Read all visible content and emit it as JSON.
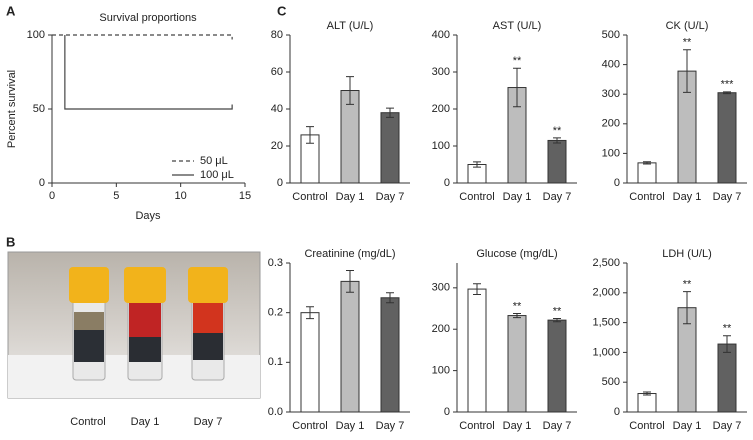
{
  "panel_labels": [
    "A",
    "B",
    "C"
  ],
  "photo": {
    "labels": [
      "Control",
      "Day 1",
      "Day 7"
    ]
  },
  "chart_data": [
    {
      "type": "line",
      "title": "Survival proportions",
      "x_label": "Days",
      "y_label": "Percent survival",
      "xlim": [
        0,
        15
      ],
      "xticks": [
        0,
        5,
        10,
        15
      ],
      "ylim": [
        0,
        100
      ],
      "yticks": [
        0,
        50,
        100
      ],
      "series": [
        {
          "name": "50 μL",
          "color": "#444444",
          "line_style": "dashed",
          "x": [
            0,
            14,
            14
          ],
          "values": [
            100,
            100,
            97
          ]
        },
        {
          "name": "100 μL",
          "color": "#444444",
          "line_style": "solid",
          "x": [
            1,
            1,
            1,
            14,
            14
          ],
          "values": [
            100,
            100,
            50,
            50,
            53
          ]
        }
      ],
      "legend": "lower right"
    },
    {
      "type": "bar",
      "title": "ALT (U/L)",
      "categories": [
        "Control",
        "Day 1",
        "Day 7"
      ],
      "values": [
        26,
        50,
        38
      ],
      "errors": [
        4.5,
        7.5,
        2.5
      ],
      "annotations": [
        null,
        null,
        null
      ],
      "colors": [
        "#ffffff",
        "#bdbdbd",
        "#616161"
      ],
      "ylim": [
        0,
        80
      ],
      "yticks": [
        0,
        20,
        40,
        60,
        80
      ]
    },
    {
      "type": "bar",
      "title": "AST (U/L)",
      "categories": [
        "Control",
        "Day 1",
        "Day 7"
      ],
      "values": [
        50,
        258,
        115
      ],
      "errors": [
        7,
        52,
        7
      ],
      "annotations": [
        null,
        "**",
        "**"
      ],
      "colors": [
        "#ffffff",
        "#bdbdbd",
        "#616161"
      ],
      "ylim": [
        0,
        400
      ],
      "yticks": [
        0,
        100,
        200,
        300,
        400
      ]
    },
    {
      "type": "bar",
      "title": "CK (U/L)",
      "categories": [
        "Control",
        "Day 1",
        "Day 7"
      ],
      "values": [
        68,
        378,
        305
      ],
      "errors": [
        4,
        72,
        3
      ],
      "annotations": [
        null,
        "**",
        "***"
      ],
      "colors": [
        "#ffffff",
        "#bdbdbd",
        "#616161"
      ],
      "ylim": [
        0,
        500
      ],
      "yticks": [
        0,
        100,
        200,
        300,
        400,
        500
      ]
    },
    {
      "type": "bar",
      "title": "Creatinine (mg/dL)",
      "categories": [
        "Control",
        "Day 1",
        "Day 7"
      ],
      "values": [
        0.2,
        0.263,
        0.23
      ],
      "errors": [
        0.012,
        0.022,
        0.01
      ],
      "annotations": [
        null,
        null,
        null
      ],
      "colors": [
        "#ffffff",
        "#bdbdbd",
        "#616161"
      ],
      "ylim": [
        0,
        0.3
      ],
      "yticks": [
        {
          "value": 0,
          "label": "0.0"
        },
        0.1,
        0.2,
        0.3
      ]
    },
    {
      "type": "bar",
      "title": "Glucose (mg/dL)",
      "categories": [
        "Control",
        "Day 1",
        "Day 7"
      ],
      "values": [
        297,
        233,
        222
      ],
      "errors": [
        13,
        5,
        4
      ],
      "annotations": [
        null,
        "**",
        "**"
      ],
      "colors": [
        "#ffffff",
        "#bdbdbd",
        "#616161"
      ],
      "ylim": [
        0,
        360
      ],
      "yticks": [
        0,
        100,
        200,
        300
      ]
    },
    {
      "type": "bar",
      "title": "LDH (U/L)",
      "categories": [
        "Control",
        "Day 1",
        "Day 7"
      ],
      "values": [
        310,
        1750,
        1140
      ],
      "errors": [
        25,
        270,
        140
      ],
      "annotations": [
        null,
        "**",
        "**"
      ],
      "colors": [
        "#ffffff",
        "#bdbdbd",
        "#616161"
      ],
      "ylim": [
        0,
        2500
      ],
      "yticks": [
        0,
        500,
        {
          "value": 1000,
          "label": "1,000"
        },
        {
          "value": 1500,
          "label": "1,500"
        },
        {
          "value": 2000,
          "label": "2,000"
        },
        {
          "value": 2500,
          "label": "2,500"
        }
      ]
    }
  ]
}
